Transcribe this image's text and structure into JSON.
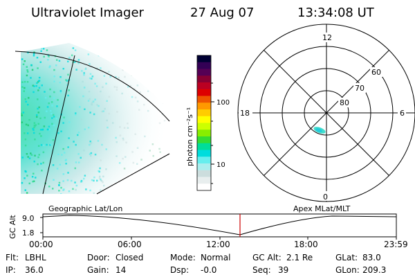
{
  "header": {
    "instrument": "Ultraviolet Imager",
    "date": "27 Aug 07",
    "time": "13:34:08 UT"
  },
  "colorbar": {
    "unit_label": "photon cm⁻²s⁻¹",
    "ticks": [
      "100",
      "10"
    ],
    "scale": "log",
    "colors": [
      "#000033",
      "#330055",
      "#550055",
      "#880033",
      "#bb0022",
      "#dd0000",
      "#ee5500",
      "#ff9900",
      "#ffcc00",
      "#ffff00",
      "#ccff00",
      "#88ee00",
      "#33dd33",
      "#00dd99",
      "#00dddd",
      "#66eeee",
      "#aaeeee",
      "#ccdddd",
      "#e8eeee",
      "#ffffff"
    ]
  },
  "geo_view": {
    "label": "Geographic Lat/Lon"
  },
  "polar_plot": {
    "label": "Apex MLat/MLT",
    "mlt_labels": {
      "top": "12",
      "left": "18",
      "right": "6",
      "bottom": "0"
    },
    "lat_labels": [
      "60",
      "70",
      "80"
    ]
  },
  "altitude_plot": {
    "y_axis_label": "GC Alt",
    "y_ticks": [
      "9.0",
      "1.8"
    ],
    "x_ticks": [
      "00:00",
      "06:00",
      "12:00",
      "18:00",
      "23:59"
    ],
    "current_time_marker": "13:34",
    "marker_color": "#cc0000"
  },
  "info": {
    "filter_label": "Flt:",
    "filter_value": "LBHL",
    "ip_label": "IP:",
    "ip_value": "36.0",
    "door_label": "Door:",
    "door_value": "Closed",
    "gain_label": "Gain:",
    "gain_value": "14",
    "mode_label": "Mode:",
    "mode_value": "Normal",
    "dsp_label": "Dsp:",
    "dsp_value": "-0.0",
    "gcalt_label": "GC Alt:",
    "gcalt_value": "2.1 Re",
    "seq_label": "Seq:",
    "seq_value": "39",
    "glat_label": "GLat:",
    "glat_value": "83.0",
    "glon_label": "GLon:",
    "glon_value": "209.3"
  }
}
